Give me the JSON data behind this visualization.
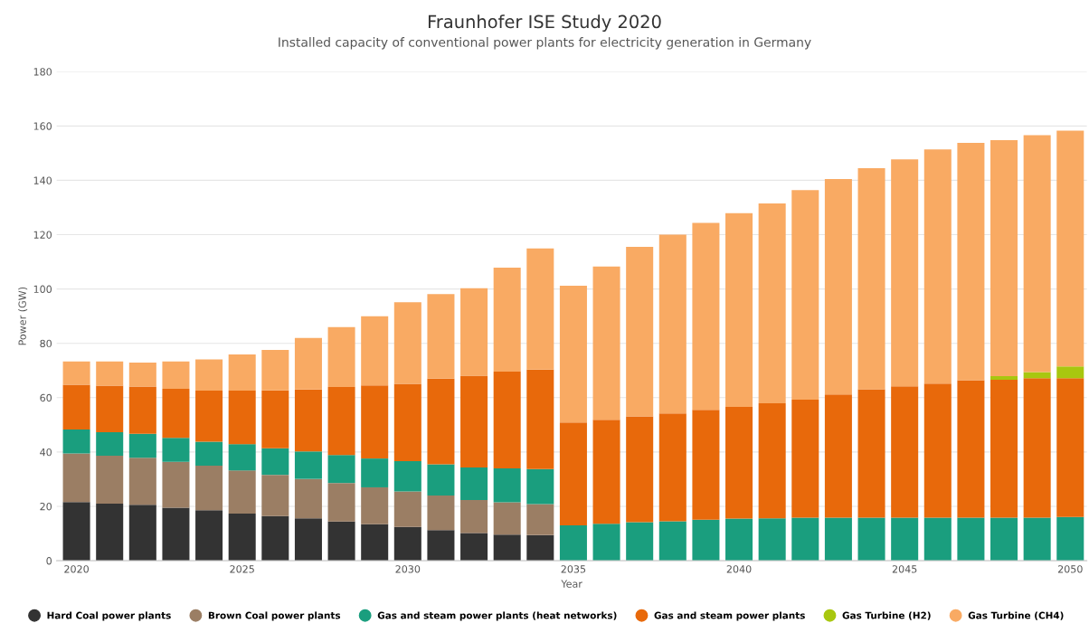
{
  "chart_data": {
    "type": "bar",
    "stacked": true,
    "title": "Fraunhofer ISE Study 2020",
    "subtitle": "Installed capacity of conventional power plants for electricity generation in Germany",
    "xlabel": "Year",
    "ylabel": "Power (GW)",
    "categories": [
      "2020",
      null,
      null,
      null,
      null,
      "2025",
      null,
      null,
      null,
      null,
      "2030",
      null,
      null,
      null,
      null,
      "2035",
      null,
      null,
      null,
      null,
      "2040",
      null,
      null,
      null,
      null,
      "2045",
      null,
      null,
      null,
      null,
      "2050"
    ],
    "series": [
      {
        "name": "Hard Coal power plants",
        "color": "#333333",
        "values": [
          21.6,
          21,
          20.6,
          19.5,
          18.6,
          17.3,
          16.4,
          15.6,
          14.4,
          13.4,
          12.4,
          11.3,
          10.2,
          9.6,
          9.4,
          null,
          null,
          null,
          null,
          null,
          null,
          null,
          null,
          null,
          null,
          null,
          null,
          null,
          null,
          null,
          null
        ]
      },
      {
        "name": "Brown Coal power plants",
        "color": "#9b7e64",
        "values": [
          17.9,
          17.6,
          17.3,
          16.9,
          16.4,
          15.9,
          15.2,
          14.5,
          14.2,
          13.6,
          13.1,
          12.7,
          12.1,
          11.9,
          11.4,
          null,
          null,
          null,
          null,
          null,
          null,
          null,
          null,
          null,
          null,
          null,
          null,
          null,
          null,
          null,
          null
        ]
      },
      {
        "name": "Gas and steam power plants (heat networks)",
        "color": "#1a9e7e",
        "values": [
          8.8,
          8.7,
          8.8,
          8.8,
          8.8,
          9.7,
          9.8,
          10.1,
          10.3,
          10.6,
          11.1,
          11.5,
          12.0,
          12.5,
          12.9,
          13,
          13.6,
          14.2,
          14.5,
          15.1,
          15.5,
          15.6,
          15.8,
          15.8,
          15.8,
          15.8,
          15.8,
          15.8,
          15.8,
          15.8,
          16.1
        ]
      },
      {
        "name": "Gas and steam power plants",
        "color": "#e8690b",
        "values": [
          16.5,
          17.1,
          17.4,
          18.1,
          18.8,
          19.7,
          21.3,
          22.8,
          25,
          26.9,
          28.5,
          31.5,
          33.8,
          35.6,
          36.6,
          37.9,
          38.3,
          38.9,
          39.7,
          40.4,
          41.1,
          42.3,
          43.5,
          45.4,
          47.3,
          48.4,
          49.4,
          50.6,
          50.8,
          51.4,
          51.1
        ]
      },
      {
        "name": "Gas Turbine (H2)",
        "color": "#a8c70f",
        "values": [
          null,
          null,
          null,
          null,
          null,
          null,
          null,
          null,
          null,
          null,
          null,
          null,
          null,
          null,
          null,
          null,
          null,
          null,
          null,
          null,
          null,
          null,
          null,
          null,
          null,
          null,
          null,
          null,
          1.3,
          2.2,
          4.3
        ]
      },
      {
        "name": "Gas Turbine (CH4)",
        "color": "#f9aa63",
        "values": [
          8.5,
          8.9,
          8.8,
          10,
          11.5,
          13.3,
          14.9,
          19,
          22.1,
          25.5,
          30,
          31.1,
          32.2,
          38.3,
          44.6,
          50.3,
          56.4,
          62.4,
          65.8,
          68.8,
          71.3,
          73.6,
          77.1,
          79.3,
          81.4,
          83.5,
          86.2,
          87.4,
          86.9,
          87.2,
          86.8
        ]
      }
    ],
    "ylim": [
      0,
      180
    ],
    "yticks": [
      0,
      20,
      40,
      60,
      80,
      100,
      120,
      140,
      160,
      180
    ],
    "grid": "y",
    "legend": "bottom"
  }
}
